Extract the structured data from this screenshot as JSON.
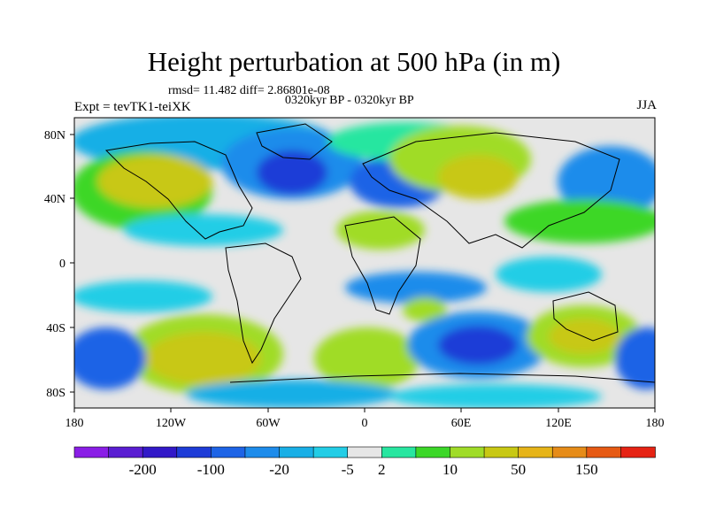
{
  "title": "Height perturbation at 500 hPa (in m)",
  "stats": "rmsd= 11.482 diff= 2.86801e-08",
  "period": "0320kyr BP - 0320kyr BP",
  "experiment": "Expt = tevTK1-teiXK",
  "season": "JJA",
  "axes": {
    "x_ticks": [
      "180",
      "120W",
      "60W",
      "0",
      "60E",
      "120E",
      "180"
    ],
    "y_ticks": [
      "80N",
      "40N",
      "0",
      "40S",
      "80S"
    ]
  },
  "colorbar": {
    "colors": [
      "#8a1ee6",
      "#5a1ed2",
      "#3219c8",
      "#1e3cd7",
      "#1e64e6",
      "#1e8ceb",
      "#19afe6",
      "#23cde6",
      "#e6e6e6",
      "#28e6a0",
      "#3cd728",
      "#a0dc28",
      "#c8c814",
      "#e6b419",
      "#e68c19",
      "#e65a14",
      "#e62314"
    ],
    "labels": [
      "-200",
      "-100",
      "-20",
      "-5",
      "2",
      "10",
      "50",
      "150"
    ]
  }
}
